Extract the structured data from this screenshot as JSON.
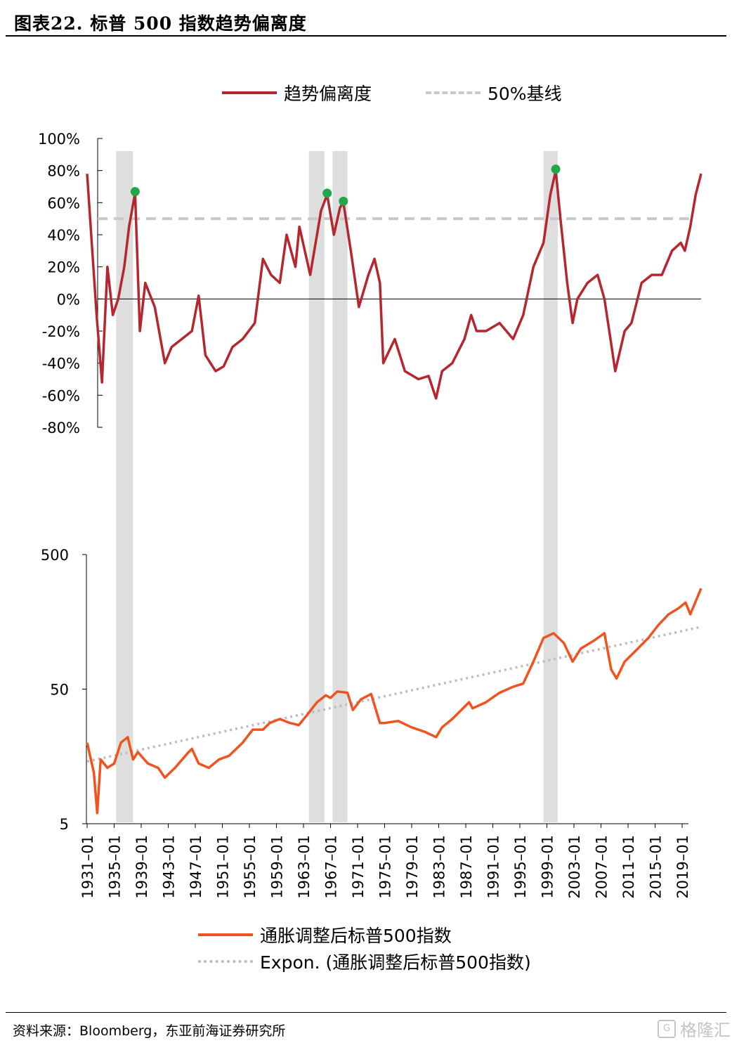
{
  "figure": {
    "title": "图表22. 标普 500 指数趋势偏离度",
    "source": "资料来源：Bloomberg，东亚前海证券研究所",
    "watermark": "格隆汇"
  },
  "colors": {
    "deviation": "#b5262f",
    "baseline": "#c9c9c9",
    "index": "#f0531d",
    "trend": "#bdbdbd",
    "recession": "#dedede",
    "peak": "#21a64a",
    "zero_line": "#000000"
  },
  "legend_top": {
    "deviation_label": "趋势偏离度",
    "baseline_label": "50%基线"
  },
  "legend_bottom": {
    "index_label": "通胀调整后标普500指数",
    "trend_label": "Expon. (通胀调整后标普500指数)"
  },
  "chart_data": [
    {
      "type": "line",
      "title": "标普 500 指数趋势偏离度",
      "ylabel": "",
      "ylim": [
        -80,
        100
      ],
      "y_ticks": [
        "100%",
        "80%",
        "60%",
        "40%",
        "20%",
        "0%",
        "-20%",
        "-40%",
        "-60%",
        "-80%"
      ],
      "baseline": 50,
      "x": [
        1931,
        1932.4,
        1933.2,
        1934,
        1934.8,
        1935.6,
        1936.5,
        1937.2,
        1938.1,
        1938.8,
        1939.6,
        1941,
        1942.5,
        1943.5,
        1945,
        1946.5,
        1947.5,
        1948.5,
        1950,
        1951.2,
        1952.5,
        1954,
        1955.8,
        1957,
        1958.2,
        1959.5,
        1960.5,
        1961.8,
        1962.4,
        1964,
        1965.6,
        1966.5,
        1967.5,
        1968.4,
        1968.9,
        1970,
        1971.2,
        1972.6,
        1973.5,
        1974.3,
        1974.8,
        1976.5,
        1978,
        1980,
        1981.5,
        1982.6,
        1983.5,
        1985,
        1986.8,
        1987.8,
        1988.6,
        1990,
        1992,
        1994,
        1995.5,
        1997,
        1998.5,
        1999.5,
        2000.3,
        2001,
        2002,
        2002.8,
        2003.5,
        2005,
        2006.5,
        2007.5,
        2008.4,
        2009.1,
        2010.5,
        2011.5,
        2013,
        2014.5,
        2016,
        2017.5,
        2018.8,
        2019.4,
        2020.2,
        2021,
        2021.8
      ],
      "series": [
        {
          "name": "趋势偏离度",
          "values": [
            78,
            -10,
            -52,
            20,
            -10,
            0,
            20,
            45,
            66,
            -20,
            10,
            -5,
            -40,
            -30,
            -25,
            -20,
            2,
            -35,
            -45,
            -42,
            -30,
            -25,
            -15,
            25,
            15,
            10,
            40,
            20,
            45,
            15,
            55,
            65,
            40,
            57,
            60,
            30,
            -5,
            15,
            25,
            10,
            -40,
            -25,
            -45,
            -50,
            -48,
            -62,
            -45,
            -40,
            -25,
            -10,
            -20,
            -20,
            -15,
            -25,
            -10,
            20,
            35,
            65,
            80,
            50,
            10,
            -15,
            0,
            10,
            15,
            0,
            -25,
            -45,
            -20,
            -15,
            10,
            15,
            15,
            30,
            35,
            30,
            45,
            65,
            78
          ]
        }
      ],
      "peaks": [
        1938.1,
        1966.5,
        1968.9,
        2000.3
      ],
      "recessions": [
        [
          1935.3,
          1937.8
        ],
        [
          1963.8,
          1966.1
        ],
        [
          1967.3,
          1969.5
        ],
        [
          1998.5,
          2000.6
        ]
      ]
    },
    {
      "type": "line",
      "log_scale": true,
      "title": "通胀调整后标普500指数",
      "ylim": [
        5,
        500
      ],
      "y_ticks": [
        "500",
        "50",
        "5"
      ],
      "x_ticks": [
        "1931–01",
        "1935–01",
        "1939–01",
        "1943–01",
        "1947–01",
        "1951–01",
        "1955–01",
        "1959–01",
        "1963–01",
        "1967–01",
        "1971–01",
        "1975–01",
        "1979–01",
        "1983–01",
        "1987–01",
        "1991–01",
        "1995–01",
        "1999–01",
        "2003–01",
        "2007–01",
        "2011–01",
        "2015–01",
        "2019–01"
      ],
      "x": [
        1931,
        1932,
        1932.5,
        1933,
        1934,
        1935,
        1936,
        1937,
        1937.8,
        1938.5,
        1940,
        1941.5,
        1942.5,
        1944,
        1946,
        1946.5,
        1947.5,
        1949,
        1950.5,
        1952,
        1954,
        1955.5,
        1957,
        1958,
        1959.5,
        1961,
        1962.3,
        1963.5,
        1965,
        1966.3,
        1967,
        1968,
        1969.5,
        1970.3,
        1971.5,
        1973,
        1974.3,
        1975,
        1977,
        1979,
        1981,
        1982.6,
        1983.5,
        1985,
        1987.5,
        1988,
        1990,
        1992,
        1994,
        1995.5,
        1997,
        1998.5,
        2000,
        2001.5,
        2002.8,
        2004,
        2006,
        2007.5,
        2008.5,
        2009.3,
        2010.5,
        2012,
        2014,
        2015.5,
        2017,
        2018.5,
        2019.5,
        2020.2,
        2021.8
      ],
      "series": [
        {
          "name": "通胀调整后标普500指数",
          "values": [
            20,
            12,
            6,
            15,
            13,
            14,
            20,
            22,
            15,
            17,
            14,
            13,
            11,
            13,
            17,
            18,
            14,
            13,
            15,
            16,
            20,
            25,
            25,
            28,
            30,
            28,
            27,
            32,
            40,
            45,
            43,
            48,
            47,
            35,
            42,
            46,
            28,
            28,
            29,
            26,
            24,
            22,
            26,
            30,
            40,
            36,
            40,
            47,
            52,
            55,
            80,
            120,
            130,
            110,
            80,
            100,
            115,
            130,
            70,
            60,
            80,
            95,
            120,
            150,
            180,
            200,
            220,
            180,
            280
          ]
        },
        {
          "name": "Expon. (通胀调整后标普500指数)",
          "trend": true,
          "start": [
            1931,
            14.5
          ],
          "end": [
            2021.8,
            145
          ]
        }
      ]
    }
  ]
}
